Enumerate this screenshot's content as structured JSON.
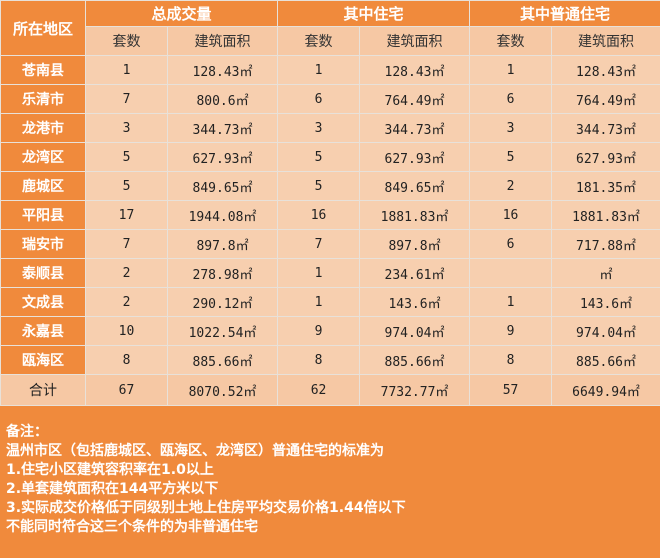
{
  "header": {
    "region": "所在地区",
    "group1": "总成交量",
    "group2": "其中住宅",
    "group3": "其中普通住宅",
    "sets": "套数",
    "area": "建筑面积"
  },
  "rows": [
    {
      "region": "苍南县",
      "c1": "1",
      "a1": "128.43㎡",
      "c2": "1",
      "a2": "128.43㎡",
      "c3": "1",
      "a3": "128.43㎡"
    },
    {
      "region": "乐清市",
      "c1": "7",
      "a1": "800.6㎡",
      "c2": "6",
      "a2": "764.49㎡",
      "c3": "6",
      "a3": "764.49㎡"
    },
    {
      "region": "龙港市",
      "c1": "3",
      "a1": "344.73㎡",
      "c2": "3",
      "a2": "344.73㎡",
      "c3": "3",
      "a3": "344.73㎡"
    },
    {
      "region": "龙湾区",
      "c1": "5",
      "a1": "627.93㎡",
      "c2": "5",
      "a2": "627.93㎡",
      "c3": "5",
      "a3": "627.93㎡"
    },
    {
      "region": "鹿城区",
      "c1": "5",
      "a1": "849.65㎡",
      "c2": "5",
      "a2": "849.65㎡",
      "c3": "2",
      "a3": "181.35㎡"
    },
    {
      "region": "平阳县",
      "c1": "17",
      "a1": "1944.08㎡",
      "c2": "16",
      "a2": "1881.83㎡",
      "c3": "16",
      "a3": "1881.83㎡"
    },
    {
      "region": "瑞安市",
      "c1": "7",
      "a1": "897.8㎡",
      "c2": "7",
      "a2": "897.8㎡",
      "c3": "6",
      "a3": "717.88㎡"
    },
    {
      "region": "泰顺县",
      "c1": "2",
      "a1": "278.98㎡",
      "c2": "1",
      "a2": "234.61㎡",
      "c3": "",
      "a3": "㎡"
    },
    {
      "region": "文成县",
      "c1": "2",
      "a1": "290.12㎡",
      "c2": "1",
      "a2": "143.6㎡",
      "c3": "1",
      "a3": "143.6㎡"
    },
    {
      "region": "永嘉县",
      "c1": "10",
      "a1": "1022.54㎡",
      "c2": "9",
      "a2": "974.04㎡",
      "c3": "9",
      "a3": "974.04㎡"
    },
    {
      "region": "瓯海区",
      "c1": "8",
      "a1": "885.66㎡",
      "c2": "8",
      "a2": "885.66㎡",
      "c3": "8",
      "a3": "885.66㎡"
    }
  ],
  "total": {
    "region": "合计",
    "c1": "67",
    "a1": "8070.52㎡",
    "c2": "62",
    "a2": "7732.77㎡",
    "c3": "57",
    "a3": "6649.94㎡"
  },
  "notes": [
    "备注：",
    "温州市区（包括鹿城区、瓯海区、龙湾区）普通住宅的标准为",
    "1.住宅小区建筑容积率在1.0以上",
    "2.单套建筑面积在144平方米以下",
    "3.实际成交价格低于同级别土地上住房平均交易价格1.44倍以下",
    "不能同时符合这三个条件的为非普通住宅"
  ]
}
